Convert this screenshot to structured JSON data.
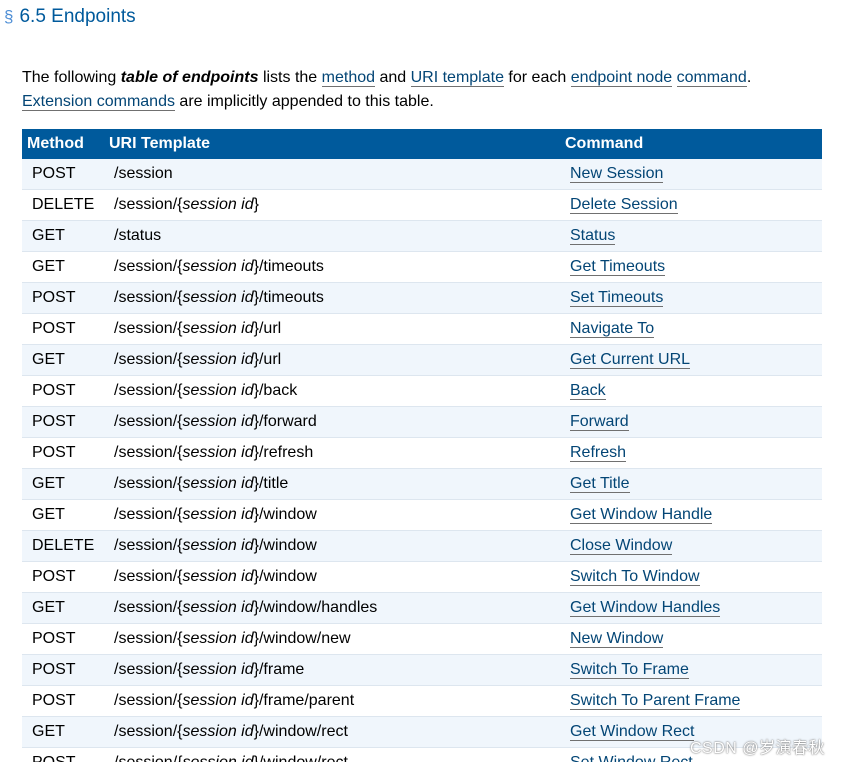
{
  "heading": {
    "section_symbol": "§",
    "title": "6.5 Endpoints"
  },
  "intro": {
    "t1": "The following ",
    "em": "table of endpoints",
    "t2": " lists the ",
    "link_method": "method",
    "t3": " and ",
    "link_uri_template": "URI template",
    "t4": " for each ",
    "link_endpoint_node": "endpoint node",
    "t5": " ",
    "link_command": "command",
    "t6": ".",
    "link_extension_commands": "Extension commands",
    "t7": " are implicitly appended to this table."
  },
  "table": {
    "headers": {
      "method": "Method",
      "uri": "URI Template",
      "command": "Command"
    },
    "rows": [
      {
        "method": "POST",
        "uri_pre": "/session",
        "uri_var": "",
        "uri_post": "",
        "command": "New Session"
      },
      {
        "method": "DELETE",
        "uri_pre": "/session/{",
        "uri_var": "session id",
        "uri_post": "}",
        "command": "Delete Session"
      },
      {
        "method": "GET",
        "uri_pre": "/status",
        "uri_var": "",
        "uri_post": "",
        "command": "Status"
      },
      {
        "method": "GET",
        "uri_pre": "/session/{",
        "uri_var": "session id",
        "uri_post": "}/timeouts",
        "command": "Get Timeouts"
      },
      {
        "method": "POST",
        "uri_pre": "/session/{",
        "uri_var": "session id",
        "uri_post": "}/timeouts",
        "command": "Set Timeouts"
      },
      {
        "method": "POST",
        "uri_pre": "/session/{",
        "uri_var": "session id",
        "uri_post": "}/url",
        "command": "Navigate To"
      },
      {
        "method": "GET",
        "uri_pre": "/session/{",
        "uri_var": "session id",
        "uri_post": "}/url",
        "command": "Get Current URL"
      },
      {
        "method": "POST",
        "uri_pre": "/session/{",
        "uri_var": "session id",
        "uri_post": "}/back",
        "command": "Back"
      },
      {
        "method": "POST",
        "uri_pre": "/session/{",
        "uri_var": "session id",
        "uri_post": "}/forward",
        "command": "Forward"
      },
      {
        "method": "POST",
        "uri_pre": "/session/{",
        "uri_var": "session id",
        "uri_post": "}/refresh",
        "command": "Refresh"
      },
      {
        "method": "GET",
        "uri_pre": "/session/{",
        "uri_var": "session id",
        "uri_post": "}/title",
        "command": "Get Title"
      },
      {
        "method": "GET",
        "uri_pre": "/session/{",
        "uri_var": "session id",
        "uri_post": "}/window",
        "command": "Get Window Handle"
      },
      {
        "method": "DELETE",
        "uri_pre": "/session/{",
        "uri_var": "session id",
        "uri_post": "}/window",
        "command": "Close Window"
      },
      {
        "method": "POST",
        "uri_pre": "/session/{",
        "uri_var": "session id",
        "uri_post": "}/window",
        "command": "Switch To Window"
      },
      {
        "method": "GET",
        "uri_pre": "/session/{",
        "uri_var": "session id",
        "uri_post": "}/window/handles",
        "command": "Get Window Handles"
      },
      {
        "method": "POST",
        "uri_pre": "/session/{",
        "uri_var": "session id",
        "uri_post": "}/window/new",
        "command": "New Window"
      },
      {
        "method": "POST",
        "uri_pre": "/session/{",
        "uri_var": "session id",
        "uri_post": "}/frame",
        "command": "Switch To Frame"
      },
      {
        "method": "POST",
        "uri_pre": "/session/{",
        "uri_var": "session id",
        "uri_post": "}/frame/parent",
        "command": "Switch To Parent Frame"
      },
      {
        "method": "GET",
        "uri_pre": "/session/{",
        "uri_var": "session id",
        "uri_post": "}/window/rect",
        "command": "Get Window Rect"
      },
      {
        "method": "POST",
        "uri_pre": "/session/{",
        "uri_var": "session id",
        "uri_post": "}/window/rect",
        "command": "Set Window Rect"
      }
    ]
  },
  "watermark": "CSDN @岁演春秋",
  "colors": {
    "header_bg": "#005a9c",
    "link": "#034575",
    "row_alt": "#f0f6fc"
  }
}
